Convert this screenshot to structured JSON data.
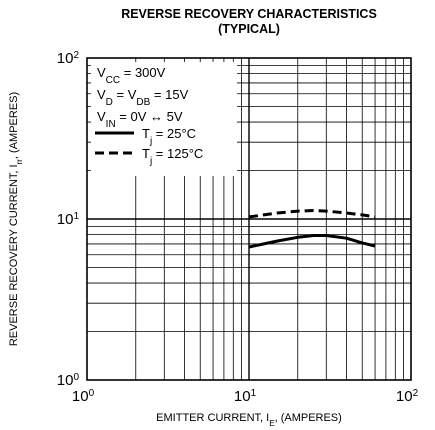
{
  "chart_data": {
    "type": "line",
    "title": "REVERSE RECOVERY CHARACTERISTICS",
    "subtitle": "(TYPICAL)",
    "xlabel": "EMITTER CURRENT, I",
    "xlabel_sub": "E",
    "xlabel_suffix": ", (AMPERES)",
    "ylabel": "REVERSE RECOVERY CURRENT, I",
    "ylabel_sub": "rr",
    "ylabel_suffix": ", (AMPERES)",
    "xscale": "log",
    "yscale": "log",
    "xlim": [
      1,
      100
    ],
    "ylim": [
      1,
      100
    ],
    "grid": true,
    "x_ticks": [
      {
        "base": "10",
        "exp": "0"
      },
      {
        "base": "10",
        "exp": "1"
      },
      {
        "base": "10",
        "exp": "2"
      }
    ],
    "y_ticks": [
      {
        "base": "10",
        "exp": "0"
      },
      {
        "base": "10",
        "exp": "1"
      },
      {
        "base": "10",
        "exp": "2"
      }
    ],
    "conditions": [
      {
        "main": "V",
        "sub": "CC",
        "rest": " = 300V"
      },
      {
        "main": "V",
        "sub": "D",
        "rest": " = V",
        "sub2": "DB",
        "rest2": " = 15V"
      },
      {
        "main": "V",
        "sub": "IN",
        "rest": " = 0V ↔ 5V"
      }
    ],
    "series": [
      {
        "name_main": "T",
        "name_sub": "j",
        "name_rest": " = 25°C",
        "style": "solid",
        "x": [
          10,
          15,
          20,
          25,
          30,
          40,
          50,
          60
        ],
        "y": [
          6.7,
          7.3,
          7.7,
          7.9,
          7.9,
          7.6,
          7.1,
          6.8
        ]
      },
      {
        "name_main": "T",
        "name_sub": "j",
        "name_rest": " = 125°C",
        "style": "dashed",
        "x": [
          10,
          15,
          20,
          25,
          30,
          40,
          50,
          60
        ],
        "y": [
          10.3,
          10.9,
          11.2,
          11.3,
          11.2,
          10.9,
          10.6,
          10.3
        ]
      }
    ],
    "colors": {
      "line": "#000000",
      "grid": "#000000",
      "background": "#ffffff"
    }
  }
}
